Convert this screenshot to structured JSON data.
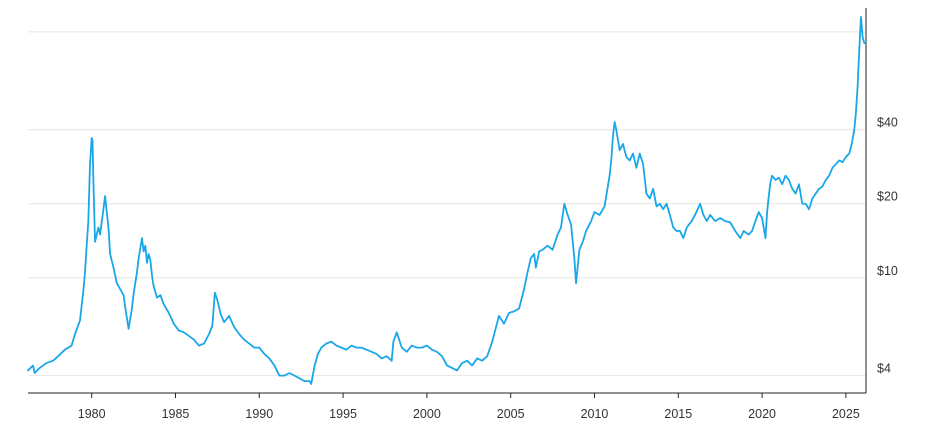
{
  "chart_data": {
    "type": "line",
    "title": "",
    "xlabel": "",
    "ylabel": "",
    "y_scale": "log",
    "y_axis_position": "right",
    "xlim": [
      1976.2,
      2026.2
    ],
    "ylim": [
      3.4,
      125
    ],
    "grid": "horizontal",
    "x_ticks": [
      {
        "value": 1980,
        "label": "1980"
      },
      {
        "value": 1985,
        "label": "1985"
      },
      {
        "value": 1990,
        "label": "1990"
      },
      {
        "value": 1995,
        "label": "1995"
      },
      {
        "value": 2000,
        "label": "2000"
      },
      {
        "value": 2005,
        "label": "2005"
      },
      {
        "value": 2010,
        "label": "2010"
      },
      {
        "value": 2015,
        "label": "2015"
      },
      {
        "value": 2020,
        "label": "2020"
      },
      {
        "value": 2025,
        "label": "2025"
      }
    ],
    "y_ticks": [
      {
        "value": 4,
        "label": "$4"
      },
      {
        "value": 10,
        "label": "$10"
      },
      {
        "value": 20,
        "label": "$20"
      },
      {
        "value": 40,
        "label": "$40"
      }
    ],
    "y_gridlines": [
      4,
      10,
      20,
      40,
      100
    ],
    "colors": {
      "series": "#1aa7e8",
      "grid": "#e6e6e6",
      "axis": "#222222",
      "text": "#333333"
    },
    "series": [
      {
        "name": "",
        "x": [
          1976.2,
          1976.5,
          1976.6,
          1976.9,
          1977.3,
          1977.7,
          1978.0,
          1978.4,
          1978.8,
          1979.0,
          1979.3,
          1979.5,
          1979.6,
          1979.7,
          1979.8,
          1979.9,
          1980.0,
          1980.05,
          1980.1,
          1980.2,
          1980.3,
          1980.4,
          1980.5,
          1980.7,
          1980.8,
          1980.9,
          1981.0,
          1981.1,
          1981.3,
          1981.5,
          1981.7,
          1981.9,
          1982.0,
          1982.2,
          1982.4,
          1982.5,
          1982.7,
          1982.8,
          1983.0,
          1983.1,
          1983.2,
          1983.3,
          1983.4,
          1983.5,
          1983.6,
          1983.7,
          1983.9,
          1984.1,
          1984.3,
          1984.6,
          1984.9,
          1985.2,
          1985.5,
          1985.8,
          1986.1,
          1986.4,
          1986.7,
          1987.0,
          1987.2,
          1987.35,
          1987.5,
          1987.7,
          1987.9,
          1988.2,
          1988.5,
          1988.8,
          1989.1,
          1989.4,
          1989.7,
          1990.0,
          1990.3,
          1990.6,
          1990.9,
          1991.2,
          1991.5,
          1991.8,
          1992.1,
          1992.4,
          1992.7,
          1993.0,
          1993.1,
          1993.3,
          1993.5,
          1993.7,
          1994.0,
          1994.3,
          1994.6,
          1994.9,
          1995.2,
          1995.5,
          1995.8,
          1996.1,
          1996.4,
          1996.7,
          1997.0,
          1997.3,
          1997.6,
          1997.9,
          1998.0,
          1998.2,
          1998.5,
          1998.8,
          1999.1,
          1999.4,
          1999.7,
          2000.0,
          2000.3,
          2000.6,
          2000.9,
          2001.2,
          2001.5,
          2001.8,
          2002.1,
          2002.4,
          2002.7,
          2003.0,
          2003.3,
          2003.6,
          2003.9,
          2004.1,
          2004.3,
          2004.6,
          2004.9,
          2005.2,
          2005.5,
          2005.8,
          2006.0,
          2006.2,
          2006.4,
          2006.5,
          2006.7,
          2006.9,
          2007.2,
          2007.5,
          2007.8,
          2008.0,
          2008.2,
          2008.4,
          2008.6,
          2008.8,
          2008.9,
          2009.1,
          2009.3,
          2009.5,
          2009.8,
          2010.0,
          2010.3,
          2010.6,
          2010.9,
          2011.0,
          2011.1,
          2011.2,
          2011.3,
          2011.5,
          2011.7,
          2011.9,
          2012.1,
          2012.3,
          2012.5,
          2012.7,
          2012.9,
          2013.1,
          2013.3,
          2013.5,
          2013.7,
          2013.9,
          2014.1,
          2014.3,
          2014.5,
          2014.7,
          2014.9,
          2015.1,
          2015.3,
          2015.5,
          2015.8,
          2016.0,
          2016.3,
          2016.5,
          2016.7,
          2016.9,
          2017.2,
          2017.5,
          2017.8,
          2018.1,
          2018.4,
          2018.7,
          2018.9,
          2019.2,
          2019.4,
          2019.6,
          2019.8,
          2020.0,
          2020.2,
          2020.3,
          2020.4,
          2020.5,
          2020.6,
          2020.8,
          2021.0,
          2021.2,
          2021.4,
          2021.6,
          2021.8,
          2022.0,
          2022.2,
          2022.4,
          2022.6,
          2022.8,
          2023.0,
          2023.2,
          2023.4,
          2023.6,
          2023.8,
          2024.0,
          2024.2,
          2024.4,
          2024.6,
          2024.8,
          2025.0,
          2025.2,
          2025.35,
          2025.5,
          2025.6,
          2025.7,
          2025.8,
          2025.9,
          2026.0,
          2026.1
        ],
        "y": [
          4.2,
          4.4,
          4.1,
          4.3,
          4.5,
          4.6,
          4.8,
          5.1,
          5.3,
          5.9,
          6.7,
          8.8,
          10.5,
          13.5,
          17,
          29,
          37,
          36,
          25,
          14,
          15,
          16,
          15,
          19,
          21.5,
          18.5,
          16,
          12.5,
          11,
          9.5,
          9,
          8.5,
          7.6,
          6.2,
          7.5,
          8.6,
          10.5,
          12,
          14.5,
          12.8,
          13.5,
          11.5,
          12.5,
          11.8,
          10.2,
          9.2,
          8.3,
          8.5,
          7.8,
          7.2,
          6.5,
          6.1,
          6.0,
          5.8,
          5.6,
          5.3,
          5.4,
          5.9,
          6.4,
          8.7,
          8.1,
          7.1,
          6.6,
          7.0,
          6.3,
          5.9,
          5.6,
          5.4,
          5.2,
          5.2,
          4.9,
          4.7,
          4.4,
          4.0,
          4.0,
          4.1,
          4.0,
          3.9,
          3.8,
          3.8,
          3.7,
          4.4,
          4.9,
          5.2,
          5.4,
          5.5,
          5.3,
          5.2,
          5.1,
          5.3,
          5.2,
          5.2,
          5.1,
          5.0,
          4.9,
          4.7,
          4.8,
          4.6,
          5.5,
          6.0,
          5.2,
          5.0,
          5.3,
          5.2,
          5.2,
          5.3,
          5.1,
          5.0,
          4.8,
          4.4,
          4.3,
          4.2,
          4.5,
          4.6,
          4.4,
          4.7,
          4.6,
          4.8,
          5.5,
          6.2,
          7.0,
          6.5,
          7.2,
          7.3,
          7.5,
          9.0,
          10.5,
          12,
          12.5,
          11,
          12.8,
          13,
          13.5,
          13,
          15,
          16,
          20,
          18,
          16.5,
          12,
          9.5,
          13,
          14,
          15.5,
          17,
          18.5,
          18,
          19.5,
          26,
          30,
          37.5,
          43,
          40,
          33,
          35,
          31,
          30,
          32,
          28,
          32,
          29,
          22,
          21,
          23,
          19.5,
          20,
          19,
          20,
          18,
          16,
          15.5,
          15.5,
          14.5,
          16,
          17,
          18,
          20,
          18,
          17,
          18,
          17,
          17.5,
          17,
          16.8,
          15.5,
          14.5,
          15.5,
          15,
          15.5,
          17,
          18.5,
          17.5,
          14.5,
          18.5,
          21.5,
          24.5,
          26,
          25,
          25.5,
          24,
          26,
          25,
          23,
          22,
          24,
          20,
          20,
          19,
          21,
          22,
          23,
          23.5,
          25,
          26,
          28,
          29,
          30,
          29.5,
          31,
          32,
          35,
          40,
          47,
          60,
          85,
          115,
          95,
          90
        ]
      }
    ]
  }
}
